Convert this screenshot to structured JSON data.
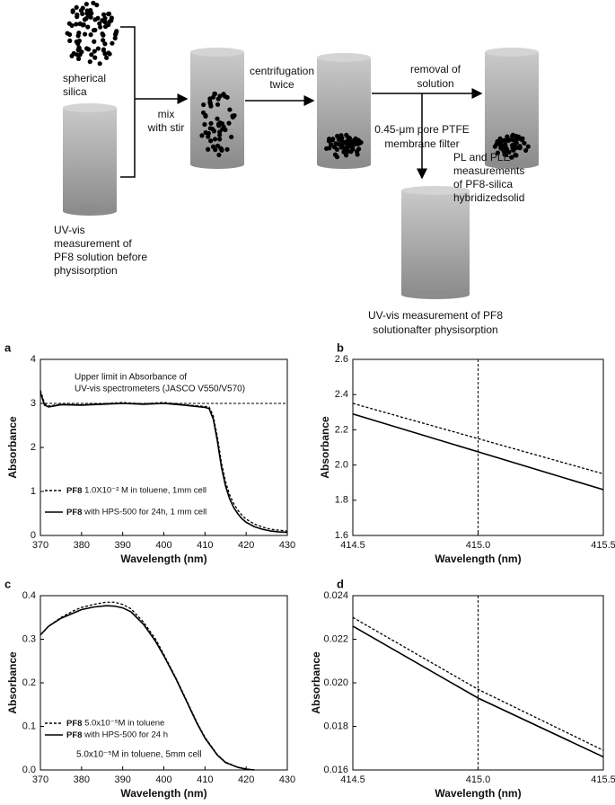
{
  "diagram": {
    "spherical_silica": [
      "spherical",
      "silica"
    ],
    "uv_before": [
      "UV-vis",
      "measurement of",
      "PF8 solution before",
      "physisorption"
    ],
    "mix": [
      "mix",
      "with stir"
    ],
    "centrifugation": [
      "centrifugation",
      "twice"
    ],
    "removal": [
      "removal of",
      "solution"
    ],
    "filter": [
      "0.45-μm pore PTFE",
      "membrane filter"
    ],
    "pl": [
      "PL and PLE",
      "measurements",
      "of PF8-silica",
      "hybridizedsolid"
    ],
    "uv_after": [
      "UV-vis measurement of PF8",
      "solutionafter physisorption"
    ]
  },
  "chart_data": [
    {
      "type": "line",
      "label": "a",
      "xlabel": "Wavelength (nm)",
      "ylabel": "Absorbance",
      "annotation": [
        "Upper limit in Absorbance of",
        "UV-vis spectrometers (JASCO V550/V570)"
      ],
      "hline": 3,
      "legend": "lower left",
      "x": [
        370,
        371,
        372,
        375,
        380,
        385,
        390,
        395,
        400,
        405,
        410,
        411,
        412,
        413,
        414,
        415,
        416,
        417,
        418,
        419,
        420,
        422,
        424,
        426,
        428,
        430
      ],
      "series": [
        {
          "name": "PF8 1.0X10⁻² M in toluene, 1mm cell",
          "color": "#000000",
          "dash": "dotted",
          "values": [
            3.3,
            3.0,
            2.94,
            2.98,
            2.97,
            2.99,
            3.02,
            2.99,
            3.02,
            2.97,
            2.93,
            2.92,
            2.72,
            2.25,
            1.65,
            1.22,
            0.92,
            0.72,
            0.57,
            0.46,
            0.37,
            0.26,
            0.19,
            0.14,
            0.12,
            0.1
          ]
        },
        {
          "name": "PF8 with HPS-500 for 24h, 1 mm cell",
          "color": "#000000",
          "dash": "solid",
          "values": [
            3.25,
            2.96,
            2.92,
            2.97,
            2.96,
            2.98,
            3.0,
            2.98,
            3.0,
            2.96,
            2.91,
            2.88,
            2.65,
            2.15,
            1.55,
            1.12,
            0.83,
            0.63,
            0.49,
            0.38,
            0.3,
            0.2,
            0.14,
            0.1,
            0.08,
            0.07
          ]
        }
      ],
      "xlim": [
        370,
        430
      ],
      "xticks": [
        370,
        380,
        390,
        400,
        410,
        420,
        430
      ],
      "ylim": [
        0,
        4
      ],
      "yticks": [
        0,
        1,
        2,
        3,
        4
      ]
    },
    {
      "type": "line",
      "label": "b",
      "xlabel": "Wavelength (nm)",
      "ylabel": "Absorbance",
      "vline": 415,
      "x": [
        414.5,
        415,
        415.5
      ],
      "series": [
        {
          "color": "#000000",
          "dash": "dotted",
          "values": [
            2.35,
            2.15,
            1.95
          ]
        },
        {
          "color": "#000000",
          "dash": "solid",
          "values": [
            2.29,
            2.075,
            1.86
          ]
        }
      ],
      "xlim": [
        414.5,
        415.5
      ],
      "xticks": [
        414.5,
        {
          "value": 415,
          "label": "415.0"
        },
        415.5
      ],
      "ylim": [
        1.6,
        2.6
      ],
      "yticks": [
        1.6,
        1.8,
        {
          "value": 2,
          "label": "2.0"
        },
        2.2,
        2.4,
        2.6
      ]
    },
    {
      "type": "line",
      "label": "c",
      "xlabel": "Wavelength (nm)",
      "ylabel": "Absorbance",
      "annotation": [
        "5.0x10⁻⁵M in toluene, 5mm cell"
      ],
      "legend": "lower left",
      "x": [
        370,
        372,
        375,
        378,
        380,
        383,
        386,
        388,
        390,
        392,
        395,
        398,
        400,
        403,
        405,
        408,
        410,
        413,
        415,
        418,
        420,
        422
      ],
      "series": [
        {
          "name": "PF8 5.0x10⁻⁵M in toluene",
          "color": "#000000",
          "dash": "dotted",
          "values": [
            0.31,
            0.33,
            0.35,
            0.365,
            0.373,
            0.38,
            0.385,
            0.385,
            0.38,
            0.37,
            0.34,
            0.3,
            0.265,
            0.21,
            0.17,
            0.11,
            0.075,
            0.035,
            0.018,
            0.006,
            0.002,
            0
          ]
        },
        {
          "name": "PF8 with HPS-500 for 24 h",
          "color": "#000000",
          "dash": "solid",
          "values": [
            0.31,
            0.33,
            0.348,
            0.36,
            0.368,
            0.374,
            0.377,
            0.376,
            0.372,
            0.363,
            0.335,
            0.295,
            0.262,
            0.208,
            0.168,
            0.108,
            0.073,
            0.034,
            0.017,
            0.006,
            0.002,
            0
          ]
        }
      ],
      "xlim": [
        370,
        430
      ],
      "xticks": [
        370,
        380,
        390,
        400,
        410,
        420,
        430
      ],
      "ylim": [
        0,
        0.4
      ],
      "yticks": [
        {
          "value": 0,
          "label": "0.0"
        },
        0.1,
        0.2,
        0.3,
        0.4
      ]
    },
    {
      "type": "line",
      "label": "d",
      "xlabel": "Wavelength (nm)",
      "ylabel": "Absorbance",
      "vline": 415,
      "x": [
        414.5,
        415,
        415.5
      ],
      "series": [
        {
          "color": "#000000",
          "dash": "dotted",
          "values": [
            0.023,
            0.0197,
            0.0169
          ]
        },
        {
          "color": "#000000",
          "dash": "solid",
          "values": [
            0.0226,
            0.0193,
            0.0166
          ]
        }
      ],
      "xlim": [
        414.5,
        415.5
      ],
      "xticks": [
        414.5,
        {
          "value": 415,
          "label": "415.0"
        },
        415.5
      ],
      "ylim": [
        0.016,
        0.024
      ],
      "yticks": [
        0.016,
        0.018,
        {
          "value": 0.02,
          "label": "0.020"
        },
        0.022,
        0.024
      ]
    }
  ]
}
